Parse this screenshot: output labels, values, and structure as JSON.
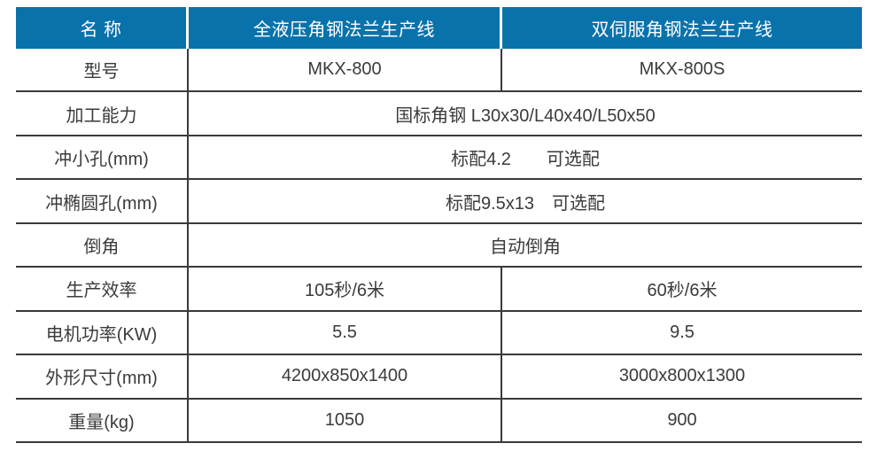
{
  "theme": {
    "header_bg": "#0a72aa",
    "header_text": "#ffffff",
    "border_color": "#3a3a3a",
    "text_color": "#3b3b3b"
  },
  "table": {
    "header": {
      "col1": "名 称",
      "col2": "全液压角钢法兰生产线",
      "col3": "双伺服角钢法兰生产线"
    },
    "rows": [
      {
        "label": "型号",
        "v1": "MKX-800",
        "v2": "MKX-800S"
      },
      {
        "label": "加工能力",
        "value": "国标角钢 L30x30/L40x40/L50x50"
      },
      {
        "label": "冲小孔(mm)",
        "value": "标配4.2　　可选配"
      },
      {
        "label": "冲椭圆孔(mm)",
        "value": "标配9.5x13　可选配"
      },
      {
        "label": "倒角",
        "value": "自动倒角"
      },
      {
        "label": "生产效率",
        "v1": "105秒/6米",
        "v2": "60秒/6米"
      },
      {
        "label": "电机功率(KW)",
        "v1": "5.5",
        "v2": "9.5"
      },
      {
        "label": "外形尺寸(mm)",
        "v1": "4200x850x1400",
        "v2": "3000x800x1300"
      },
      {
        "label": "重量(kg)",
        "v1": "1050",
        "v2": "900"
      }
    ]
  }
}
